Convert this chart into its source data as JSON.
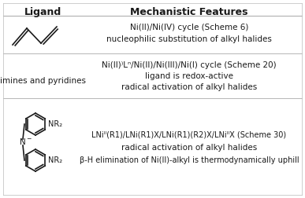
{
  "title_ligand": "Ligand",
  "title_mechanistic": "Mechanistic Features",
  "row1_text1": "Ni(II)/Ni(IV) cycle (Scheme 6)",
  "row1_text2": "nucleophilic substitution of alkyl halides",
  "row2_ligand": "imines and pyridines",
  "row2_text1": "Ni(II)⁾Lⁿ/Ni(II)/Ni(III)/Ni(I) cycle (Scheme 20)",
  "row2_text2": "ligand is redox-active",
  "row2_text3": "radical activation of alkyl halides",
  "row3_text1": "LNiᴵᴵ(R1)/LNi(R1)X/LNi(R1)(R2)X/LNiᴵᴵX (Scheme 30)",
  "row3_text2": "radical activation of alkyl halides",
  "row3_text3": "β-H elimination of Ni(II)-alkyl is thermodynamically uphill",
  "nr2_label": "NR₂",
  "n_minus": "N",
  "bg_color": "#ffffff",
  "text_color": "#1a1a1a"
}
